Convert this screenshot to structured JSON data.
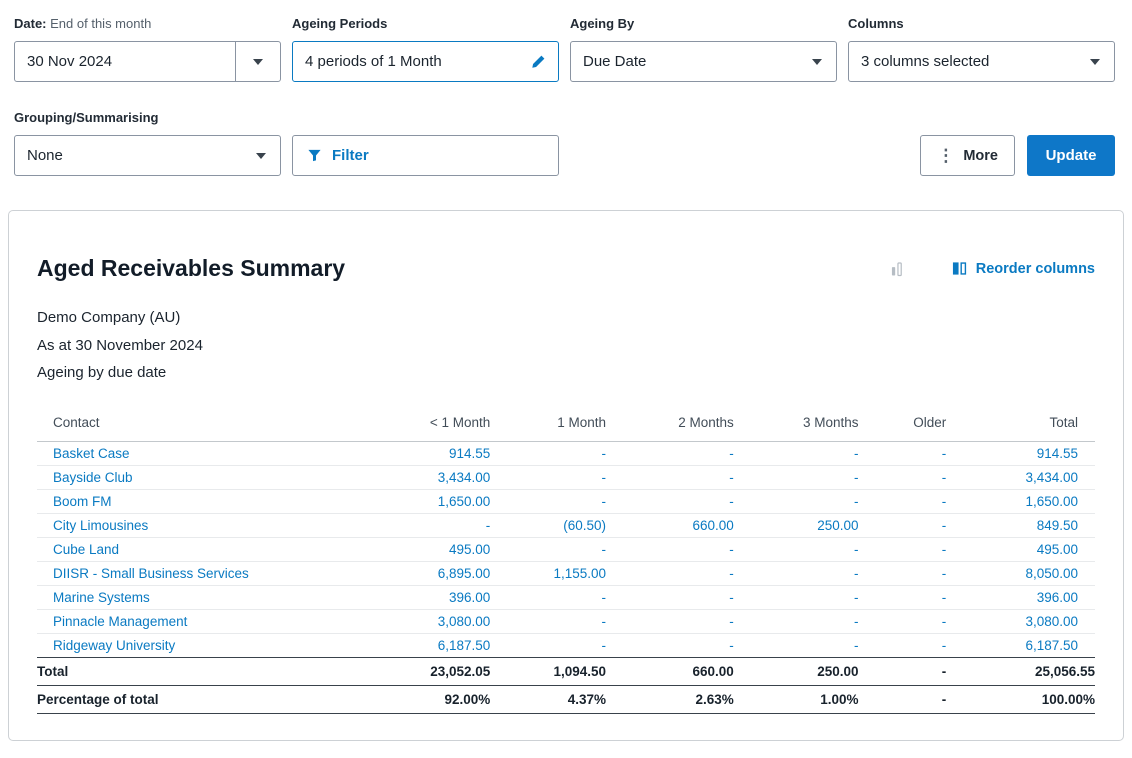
{
  "colors": {
    "accent_blue": "#0A7AC2",
    "button_blue": "#0E77C8"
  },
  "filters": {
    "date": {
      "label": "Date:",
      "sublabel": "End of this month",
      "value": "30 Nov 2024"
    },
    "ageing_periods": {
      "label": "Ageing Periods",
      "value": "4 periods of 1 Month"
    },
    "ageing_by": {
      "label": "Ageing By",
      "value": "Due Date"
    },
    "columns": {
      "label": "Columns",
      "value": "3 columns selected"
    },
    "grouping": {
      "label": "Grouping/Summarising",
      "value": "None"
    },
    "filter_label": "Filter",
    "more_label": "More",
    "update_label": "Update"
  },
  "report": {
    "title": "Aged Receivables Summary",
    "reorder_label": "Reorder columns",
    "company": "Demo Company (AU)",
    "as_at": "As at 30 November 2024",
    "ageing_note": "Ageing by due date"
  },
  "table": {
    "headers": [
      "Contact",
      "< 1 Month",
      "1 Month",
      "2 Months",
      "3 Months",
      "Older",
      "Total"
    ],
    "rows": [
      {
        "contact": "Basket Case",
        "values": [
          "914.55",
          "-",
          "-",
          "-",
          "-",
          "914.55"
        ]
      },
      {
        "contact": "Bayside Club",
        "values": [
          "3,434.00",
          "-",
          "-",
          "-",
          "-",
          "3,434.00"
        ]
      },
      {
        "contact": "Boom FM",
        "values": [
          "1,650.00",
          "-",
          "-",
          "-",
          "-",
          "1,650.00"
        ]
      },
      {
        "contact": "City Limousines",
        "values": [
          "-",
          "(60.50)",
          "660.00",
          "250.00",
          "-",
          "849.50"
        ]
      },
      {
        "contact": "Cube Land",
        "values": [
          "495.00",
          "-",
          "-",
          "-",
          "-",
          "495.00"
        ]
      },
      {
        "contact": "DIISR - Small Business Services",
        "values": [
          "6,895.00",
          "1,155.00",
          "-",
          "-",
          "-",
          "8,050.00"
        ]
      },
      {
        "contact": "Marine Systems",
        "values": [
          "396.00",
          "-",
          "-",
          "-",
          "-",
          "396.00"
        ]
      },
      {
        "contact": "Pinnacle Management",
        "values": [
          "3,080.00",
          "-",
          "-",
          "-",
          "-",
          "3,080.00"
        ]
      },
      {
        "contact": "Ridgeway University",
        "values": [
          "6,187.50",
          "-",
          "-",
          "-",
          "-",
          "6,187.50"
        ]
      }
    ],
    "total_row": {
      "label": "Total",
      "values": [
        "23,052.05",
        "1,094.50",
        "660.00",
        "250.00",
        "-",
        "25,056.55"
      ]
    },
    "percentage_row": {
      "label": "Percentage of total",
      "values": [
        "92.00%",
        "4.37%",
        "2.63%",
        "1.00%",
        "-",
        "100.00%"
      ]
    }
  }
}
